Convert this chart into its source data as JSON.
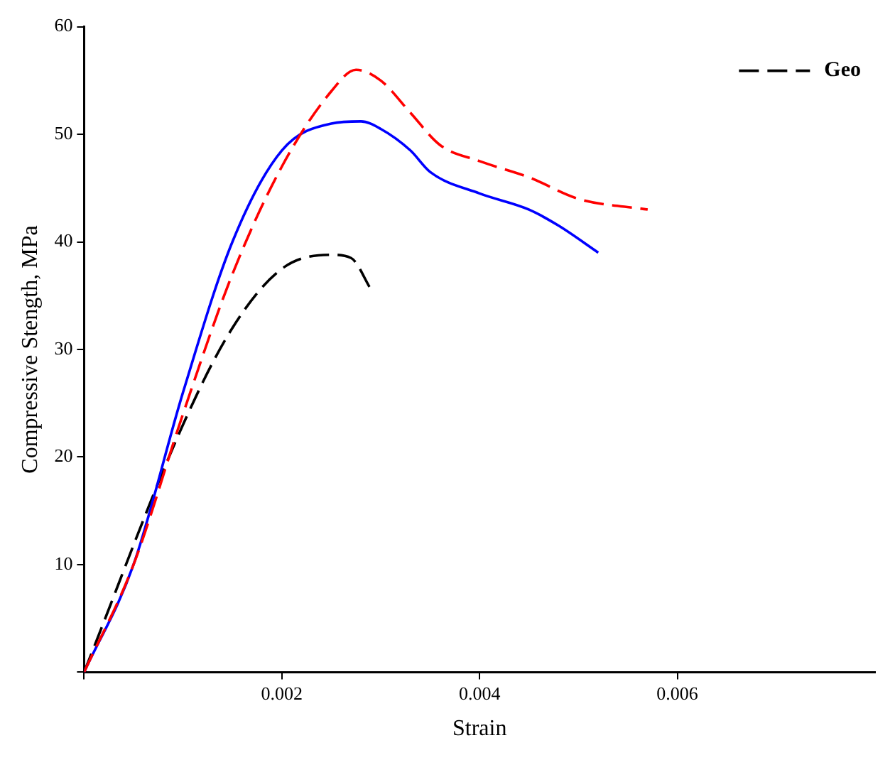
{
  "chart_data": {
    "type": "line",
    "xlabel": "Strain",
    "ylabel": "Compressive Stength, MPa",
    "xlim": [
      0,
      0.008
    ],
    "xticks": [
      {
        "value": 0,
        "label": null
      },
      0.002,
      0.004,
      0.006
    ],
    "ylim": [
      0,
      60
    ],
    "yticks": [
      {
        "value": 0,
        "label": null
      },
      10,
      20,
      30,
      40,
      50,
      60
    ],
    "grid": false,
    "legend": "top right",
    "marker": "none",
    "series": [
      {
        "color": "#ff0000",
        "line_style": "dashed",
        "x": [
          0,
          0.0005,
          0.001,
          0.0015,
          0.002,
          0.0025,
          0.00275,
          0.003,
          0.0033,
          0.0036,
          0.004,
          0.0045,
          0.005,
          0.0057
        ],
        "values": [
          0,
          10,
          24,
          37,
          47,
          54,
          56,
          55,
          52,
          49,
          47.5,
          46,
          44,
          43
        ]
      },
      {
        "color": "#0000ff",
        "line_style": "solid",
        "x": [
          0,
          0.0005,
          0.001,
          0.0015,
          0.002,
          0.0025,
          0.0028,
          0.003,
          0.0033,
          0.0035,
          0.004,
          0.0045,
          0.0048,
          0.0052
        ],
        "values": [
          0,
          10,
          26,
          40,
          48.5,
          51,
          51.2,
          50.5,
          48.5,
          46.5,
          44.5,
          43,
          41.5,
          39
        ]
      },
      {
        "name": "Geo",
        "color": "#000000",
        "line_style": "dashed",
        "x": [
          0,
          0.001,
          0.0015,
          0.002,
          0.0025,
          0.0027,
          0.0029
        ],
        "values": [
          0,
          23,
          32,
          37.5,
          38.8,
          38.5,
          35.6
        ]
      }
    ]
  }
}
